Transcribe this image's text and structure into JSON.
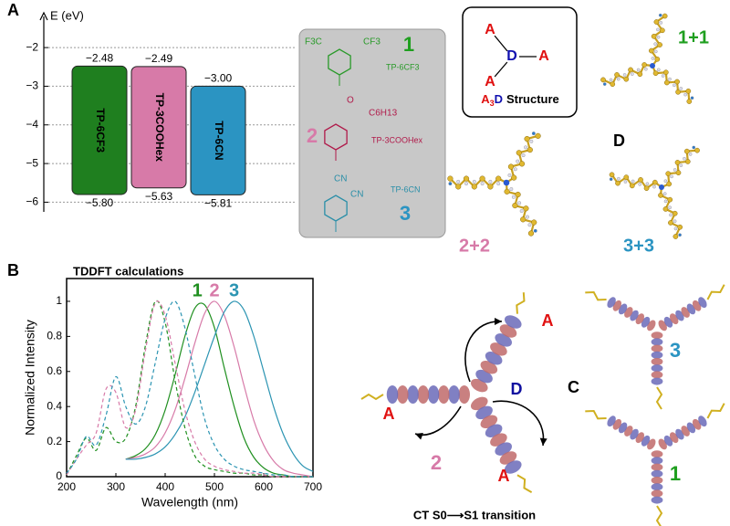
{
  "panel_labels": {
    "a": "A",
    "b": "B",
    "c": "C",
    "d": "D"
  },
  "chart_data": [
    {
      "type": "energy-levels",
      "ylabel": "E (eV)",
      "categories": [
        "TP-6CF3",
        "TP-3COOHex",
        "TP-6CN"
      ],
      "colors": [
        "#1f7f1f",
        "#d77aa8",
        "#2b94c2"
      ],
      "lumo": {
        "values": [
          -2.48,
          -2.49,
          -3.0
        ],
        "value_labels": [
          "−2.48",
          "−2.49",
          "−3.00"
        ]
      },
      "homo": {
        "values": [
          -5.8,
          -5.63,
          -5.81
        ],
        "value_labels": [
          "−5.80",
          "−5.63",
          "−5.81"
        ]
      },
      "ylim": [
        -6.25,
        -1.1
      ],
      "yticks": [
        {
          "value": -2,
          "label": "−2"
        },
        {
          "value": -3,
          "label": "−3"
        },
        {
          "value": -4,
          "label": "−4"
        },
        {
          "value": -5,
          "label": "−5"
        },
        {
          "value": -6,
          "label": "−6"
        }
      ],
      "grid": true
    },
    {
      "type": "line",
      "title": "TDDFT calculations",
      "xlabel": "Wavelength (nm)",
      "ylabel": "Normalized Intensity",
      "xlim": [
        200,
        700
      ],
      "ylim": [
        0,
        1.13
      ],
      "xticks": [
        200,
        300,
        400,
        500,
        600,
        700
      ],
      "yticks": [
        0,
        0.2,
        0.4,
        0.6,
        0.8,
        1
      ],
      "series": [
        {
          "name": "1",
          "color": "#1f8f1f",
          "dash": false,
          "x": [
            320,
            340,
            360,
            380,
            400,
            420,
            440,
            460,
            480,
            500,
            520,
            540,
            560,
            580,
            600,
            620,
            640,
            660,
            680,
            700
          ],
          "values": [
            0.1,
            0.12,
            0.16,
            0.24,
            0.38,
            0.58,
            0.8,
            0.96,
            0.98,
            0.85,
            0.62,
            0.4,
            0.22,
            0.11,
            0.05,
            0.02,
            0.01,
            0,
            0,
            0
          ]
        },
        {
          "name": "2",
          "color": "#d77aa8",
          "dash": false,
          "x": [
            320,
            340,
            360,
            380,
            400,
            420,
            440,
            460,
            480,
            500,
            520,
            540,
            560,
            580,
            600,
            620,
            640,
            660,
            680,
            700
          ],
          "values": [
            0.1,
            0.11,
            0.13,
            0.17,
            0.25,
            0.38,
            0.56,
            0.76,
            0.93,
            1.0,
            0.92,
            0.74,
            0.52,
            0.32,
            0.18,
            0.09,
            0.04,
            0.02,
            0.01,
            0
          ]
        },
        {
          "name": "3",
          "color": "#2b94b2",
          "dash": false,
          "x": [
            320,
            340,
            360,
            380,
            400,
            420,
            440,
            460,
            480,
            500,
            520,
            540,
            560,
            580,
            600,
            620,
            640,
            660,
            680,
            700
          ],
          "values": [
            0.1,
            0.1,
            0.11,
            0.13,
            0.17,
            0.24,
            0.34,
            0.48,
            0.64,
            0.8,
            0.94,
            1.0,
            0.95,
            0.8,
            0.6,
            0.4,
            0.24,
            0.13,
            0.06,
            0.03
          ]
        },
        {
          "color": "#1f8f1f",
          "dash": true,
          "x": [
            200,
            220,
            240,
            260,
            280,
            300,
            320,
            340,
            360,
            380,
            400,
            420,
            440,
            460,
            480,
            500,
            520,
            540,
            560,
            580,
            600,
            620,
            640,
            660,
            680,
            700
          ],
          "values": [
            0.01,
            0.12,
            0.22,
            0.15,
            0.28,
            0.2,
            0.22,
            0.4,
            0.75,
            1.0,
            0.88,
            0.55,
            0.28,
            0.12,
            0.06,
            0.04,
            0.03,
            0.02,
            0.02,
            0.01,
            0.01,
            0,
            0,
            0,
            0,
            0
          ]
        },
        {
          "color": "#d77aa8",
          "dash": true,
          "x": [
            200,
            220,
            240,
            260,
            280,
            300,
            320,
            340,
            360,
            380,
            400,
            420,
            440,
            460,
            480,
            500,
            520,
            540,
            560,
            580,
            600,
            620,
            640,
            660,
            680,
            700
          ],
          "values": [
            0.01,
            0.1,
            0.18,
            0.25,
            0.5,
            0.48,
            0.28,
            0.38,
            0.72,
            0.99,
            0.92,
            0.65,
            0.38,
            0.2,
            0.1,
            0.06,
            0.04,
            0.03,
            0.02,
            0.02,
            0.01,
            0,
            0,
            0,
            0,
            0
          ]
        },
        {
          "color": "#2b94b2",
          "dash": true,
          "x": [
            200,
            220,
            240,
            260,
            280,
            300,
            320,
            340,
            360,
            380,
            400,
            420,
            440,
            460,
            480,
            500,
            520,
            540,
            560,
            580,
            600,
            620,
            640,
            660,
            680,
            700
          ],
          "values": [
            0.02,
            0.1,
            0.23,
            0.18,
            0.35,
            0.57,
            0.4,
            0.3,
            0.4,
            0.65,
            0.9,
            1.0,
            0.85,
            0.58,
            0.33,
            0.18,
            0.1,
            0.06,
            0.04,
            0.03,
            0.02,
            0.01,
            0.01,
            0,
            0,
            0
          ]
        }
      ]
    }
  ],
  "structures": [
    {
      "number": "1",
      "name": "TP-6CF3",
      "groups": [
        "F3C",
        "CF3"
      ]
    },
    {
      "number": "2",
      "name": "TP-3COOHex",
      "groups": [
        "O",
        "C6H13"
      ]
    },
    {
      "number": "3",
      "name": "TP-6CN",
      "groups": [
        "CN",
        "CN"
      ]
    }
  ],
  "a3d_box": {
    "acceptor": "A",
    "donor": "D",
    "caption": [
      "A",
      "3",
      "D",
      "Structure"
    ]
  },
  "molecules": [
    "1+1",
    "2+2",
    "3+3"
  ],
  "panel_c": {
    "acceptor_labels": [
      "A",
      "A",
      "A"
    ],
    "donor_label": "D",
    "numbers": [
      "2",
      "3",
      "1"
    ],
    "caption": "CT S0⟶S1 transition"
  }
}
